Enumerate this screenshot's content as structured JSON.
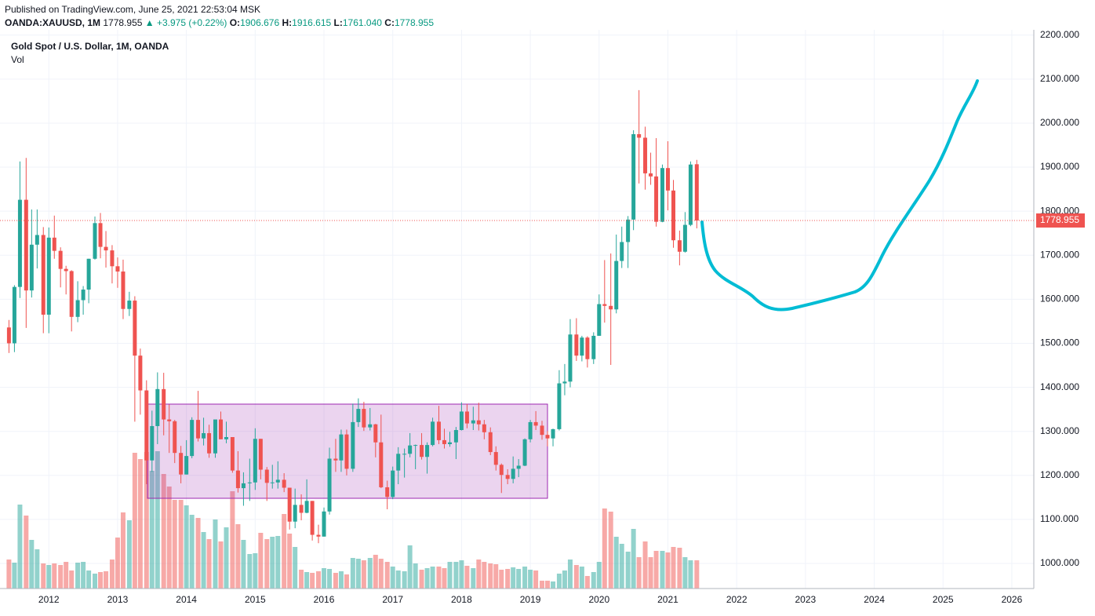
{
  "header": {
    "published": "Published on TradingView.com, June 25, 2021 22:53:04 MSK",
    "symbol": "OANDA:XAUUSD, 1M",
    "price": "1778.955",
    "change": "▲ +3.975 (+0.22%)",
    "o_label": "O:",
    "o": "1906.676",
    "h_label": "H:",
    "h": "1916.615",
    "l_label": "L:",
    "l": "1761.040",
    "c_label": "C:",
    "c": "1778.955"
  },
  "chart_data": {
    "type": "candlestick",
    "title": "Gold Spot / U.S. Dollar, 1M, OANDA",
    "volume_label": "Vol",
    "up_color": "#26a69a",
    "down_color": "#ef5350",
    "grid": true,
    "xlim": [
      2011.29,
      2026.32
    ],
    "xticks": [
      2012,
      2013,
      2014,
      2015,
      2016,
      2017,
      2018,
      2019,
      2020,
      2021,
      2022,
      2023,
      2024,
      2025,
      2026
    ],
    "ylim": [
      943,
      2212
    ],
    "yticks": [
      {
        "value": 1000,
        "label": "1000.000"
      },
      {
        "value": 1100,
        "label": "1100.000"
      },
      {
        "value": 1200,
        "label": "1200.000"
      },
      {
        "value": 1300,
        "label": "1300.000"
      },
      {
        "value": 1400,
        "label": "1400.000"
      },
      {
        "value": 1500,
        "label": "1500.000"
      },
      {
        "value": 1600,
        "label": "1600.000"
      },
      {
        "value": 1700,
        "label": "1700.000"
      },
      {
        "value": 1800,
        "label": "1800.000"
      },
      {
        "value": 1900,
        "label": "1900.000"
      },
      {
        "value": 2000,
        "label": "2000.000"
      },
      {
        "value": 2100,
        "label": "2100.000"
      },
      {
        "value": 2200,
        "label": "2200.000"
      }
    ],
    "vol_ylim": [
      0,
      712
    ],
    "last_price": {
      "value": 1778.955,
      "label": "1778.955"
    },
    "x": [
      2011.42,
      2011.5,
      2011.58,
      2011.67,
      2011.75,
      2011.83,
      2011.92,
      2012,
      2012.08,
      2012.17,
      2012.25,
      2012.33,
      2012.42,
      2012.5,
      2012.58,
      2012.67,
      2012.75,
      2012.83,
      2012.92,
      2013,
      2013.08,
      2013.17,
      2013.25,
      2013.33,
      2013.42,
      2013.5,
      2013.58,
      2013.67,
      2013.75,
      2013.83,
      2013.92,
      2014,
      2014.08,
      2014.17,
      2014.25,
      2014.33,
      2014.42,
      2014.5,
      2014.58,
      2014.67,
      2014.75,
      2014.83,
      2014.92,
      2015,
      2015.08,
      2015.17,
      2015.25,
      2015.33,
      2015.42,
      2015.5,
      2015.58,
      2015.67,
      2015.75,
      2015.83,
      2015.92,
      2016,
      2016.08,
      2016.17,
      2016.25,
      2016.33,
      2016.42,
      2016.5,
      2016.58,
      2016.67,
      2016.75,
      2016.83,
      2016.92,
      2017,
      2017.08,
      2017.17,
      2017.25,
      2017.33,
      2017.42,
      2017.5,
      2017.58,
      2017.67,
      2017.75,
      2017.83,
      2017.92,
      2018,
      2018.08,
      2018.17,
      2018.25,
      2018.33,
      2018.42,
      2018.5,
      2018.58,
      2018.67,
      2018.75,
      2018.83,
      2018.92,
      2019,
      2019.08,
      2019.17,
      2019.25,
      2019.33,
      2019.42,
      2019.5,
      2019.58,
      2019.67,
      2019.75,
      2019.83,
      2019.92,
      2020,
      2020.08,
      2020.17,
      2020.25,
      2020.33,
      2020.42,
      2020.5,
      2020.58,
      2020.67,
      2020.75,
      2020.83,
      2020.92,
      2021,
      2021.08,
      2021.17,
      2021.25,
      2021.33,
      2021.42
    ],
    "open": [
      1536,
      1500,
      1628,
      1826,
      1620,
      1724,
      1746,
      1565,
      1740,
      1710,
      1669,
      1664,
      1560,
      1598,
      1622,
      1692,
      1773,
      1719,
      1711,
      1675,
      1663,
      1578,
      1597,
      1472,
      1393,
      1234,
      1312,
      1396,
      1327,
      1323,
      1251,
      1202,
      1244,
      1326,
      1284,
      1296,
      1250,
      1327,
      1282,
      1287,
      1211,
      1171,
      1182,
      1184,
      1283,
      1213,
      1183,
      1184,
      1190,
      1172,
      1095,
      1133,
      1115,
      1142,
      1065,
      1061,
      1118,
      1238,
      1234,
      1293,
      1215,
      1321,
      1351,
      1309,
      1316,
      1275,
      1173,
      1151,
      1211,
      1249,
      1249,
      1268,
      1269,
      1242,
      1269,
      1322,
      1280,
      1271,
      1275,
      1303,
      1345,
      1318,
      1325,
      1316,
      1298,
      1253,
      1224,
      1201,
      1192,
      1215,
      1222,
      1282,
      1321,
      1313,
      1292,
      1284,
      1305,
      1409,
      1413,
      1520,
      1472,
      1513,
      1464,
      1517,
      1589,
      1585,
      1577,
      1687,
      1730,
      1781,
      1975,
      1967,
      1886,
      1879,
      1776,
      1898,
      1847,
      1734,
      1708,
      1769,
      1906.676
    ],
    "high": [
      1553,
      1632,
      1913,
      1921,
      1804,
      1804,
      1764,
      1763,
      1790,
      1718,
      1676,
      1666,
      1641,
      1630,
      1692,
      1788,
      1796,
      1755,
      1723,
      1695,
      1690,
      1617,
      1607,
      1488,
      1416,
      1347,
      1434,
      1433,
      1361,
      1326,
      1267,
      1280,
      1332,
      1392,
      1331,
      1315,
      1326,
      1345,
      1322,
      1287,
      1255,
      1207,
      1238,
      1307,
      1283,
      1219,
      1224,
      1232,
      1205,
      1172,
      1170,
      1157,
      1191,
      1142,
      1088,
      1127,
      1263,
      1283,
      1304,
      1304,
      1363,
      1375,
      1367,
      1353,
      1317,
      1338,
      1188,
      1220,
      1264,
      1261,
      1296,
      1270,
      1296,
      1275,
      1331,
      1358,
      1306,
      1299,
      1310,
      1366,
      1362,
      1356,
      1365,
      1326,
      1309,
      1266,
      1227,
      1214,
      1243,
      1237,
      1284,
      1326,
      1346,
      1324,
      1301,
      1306,
      1439,
      1453,
      1555,
      1557,
      1517,
      1516,
      1525,
      1611,
      1689,
      1704,
      1747,
      1765,
      1789,
      1984,
      2075,
      1992,
      1933,
      1966,
      1906,
      1959,
      1871,
      1756,
      1798,
      1913,
      1916.615
    ],
    "low": [
      1478,
      1480,
      1603,
      1535,
      1604,
      1670,
      1523,
      1523,
      1692,
      1627,
      1611,
      1527,
      1548,
      1565,
      1591,
      1690,
      1693,
      1672,
      1636,
      1626,
      1555,
      1562,
      1322,
      1338,
      1180,
      1208,
      1271,
      1291,
      1251,
      1228,
      1182,
      1202,
      1239,
      1277,
      1268,
      1240,
      1240,
      1282,
      1273,
      1206,
      1161,
      1131,
      1142,
      1167,
      1191,
      1142,
      1170,
      1170,
      1162,
      1077,
      1080,
      1098,
      1114,
      1052,
      1046,
      1061,
      1111,
      1208,
      1208,
      1200,
      1208,
      1310,
      1301,
      1302,
      1241,
      1171,
      1123,
      1146,
      1180,
      1195,
      1241,
      1214,
      1236,
      1204,
      1266,
      1271,
      1261,
      1265,
      1237,
      1302,
      1307,
      1303,
      1302,
      1282,
      1246,
      1211,
      1160,
      1180,
      1182,
      1196,
      1221,
      1275,
      1303,
      1281,
      1266,
      1266,
      1302,
      1382,
      1400,
      1460,
      1459,
      1445,
      1453,
      1517,
      1547,
      1451,
      1568,
      1671,
      1671,
      1757,
      1863,
      1849,
      1860,
      1765,
      1775,
      1802,
      1717,
      1677,
      1706,
      1766,
      1761.04
    ],
    "close": [
      1500,
      1628,
      1826,
      1620,
      1724,
      1746,
      1565,
      1740,
      1710,
      1669,
      1664,
      1560,
      1598,
      1622,
      1692,
      1773,
      1719,
      1711,
      1675,
      1663,
      1578,
      1597,
      1472,
      1393,
      1234,
      1312,
      1396,
      1327,
      1323,
      1251,
      1202,
      1244,
      1326,
      1284,
      1296,
      1250,
      1327,
      1282,
      1287,
      1211,
      1171,
      1182,
      1184,
      1283,
      1213,
      1183,
      1184,
      1190,
      1172,
      1095,
      1133,
      1115,
      1142,
      1065,
      1061,
      1118,
      1238,
      1234,
      1293,
      1215,
      1321,
      1351,
      1309,
      1316,
      1275,
      1173,
      1151,
      1211,
      1249,
      1249,
      1268,
      1269,
      1242,
      1269,
      1322,
      1280,
      1271,
      1275,
      1303,
      1345,
      1318,
      1325,
      1316,
      1298,
      1253,
      1224,
      1201,
      1192,
      1215,
      1222,
      1282,
      1321,
      1313,
      1292,
      1284,
      1305,
      1409,
      1413,
      1520,
      1472,
      1513,
      1464,
      1517,
      1589,
      1585,
      1577,
      1687,
      1730,
      1781,
      1975,
      1967,
      1886,
      1879,
      1776,
      1898,
      1847,
      1734,
      1708,
      1769,
      1906,
      1778.955
    ],
    "volume": [
      37,
      33,
      107,
      93,
      62,
      50,
      32,
      30,
      32,
      30,
      34,
      23,
      33,
      34,
      23,
      19,
      21,
      22,
      37,
      65,
      97,
      87,
      173,
      165,
      174,
      150,
      175,
      146,
      130,
      113,
      113,
      106,
      94,
      90,
      72,
      63,
      88,
      60,
      78,
      124,
      82,
      62,
      44,
      45,
      71,
      63,
      66,
      67,
      95,
      70,
      53,
      24,
      21,
      20,
      22,
      26,
      25,
      20,
      22,
      18,
      39,
      38,
      36,
      39,
      43,
      38,
      34,
      28,
      23,
      22,
      55,
      32,
      24,
      26,
      28,
      28,
      26,
      34,
      34,
      36,
      29,
      26,
      37,
      34,
      32,
      31,
      24,
      25,
      27,
      25,
      28,
      24,
      23,
      10,
      10,
      9,
      19,
      23,
      37,
      30,
      28,
      16,
      21,
      34,
      102,
      98,
      66,
      57,
      47,
      76,
      40,
      60,
      40,
      48,
      48,
      46,
      53,
      52,
      40,
      36,
      36
    ]
  }
}
